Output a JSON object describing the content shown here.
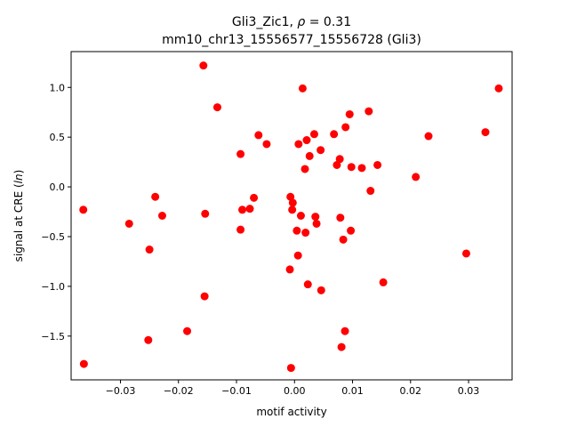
{
  "chart_data": {
    "type": "scatter",
    "title_line1_prefix": "Gli3_Zic1, ",
    "title_rho_symbol": "ρ",
    "title_rho_value": " = 0.31",
    "title_line2": "mm10_chr13_15556577_15556728 (Gli3)",
    "xlabel": "motif activity",
    "ylabel_prefix": "signal at CRE (",
    "ylabel_italic": "ln",
    "ylabel_suffix": ")",
    "xlim": [
      -0.0385,
      0.0375
    ],
    "ylim": [
      -1.94,
      1.36
    ],
    "xticks": [
      -0.03,
      -0.02,
      -0.01,
      0.0,
      0.01,
      0.02,
      0.03
    ],
    "xtick_labels": [
      "−0.03",
      "−0.02",
      "−0.01",
      "0.00",
      "0.01",
      "0.02",
      "0.03"
    ],
    "yticks": [
      -1.5,
      -1.0,
      -0.5,
      0.0,
      0.5,
      1.0
    ],
    "ytick_labels": [
      "−1.5",
      "−1.0",
      "−0.5",
      "0.0",
      "0.5",
      "1.0"
    ],
    "marker_color": "#ff0000",
    "points": [
      {
        "x": -0.0157,
        "y": 1.22
      },
      {
        "x": 0.0014,
        "y": 0.99
      },
      {
        "x": 0.0352,
        "y": 0.99
      },
      {
        "x": -0.0133,
        "y": 0.8
      },
      {
        "x": 0.0128,
        "y": 0.76
      },
      {
        "x": 0.0095,
        "y": 0.73
      },
      {
        "x": 0.0088,
        "y": 0.6
      },
      {
        "x": 0.0329,
        "y": 0.55
      },
      {
        "x": 0.0034,
        "y": 0.53
      },
      {
        "x": 0.0068,
        "y": 0.53
      },
      {
        "x": -0.0062,
        "y": 0.52
      },
      {
        "x": 0.0231,
        "y": 0.51
      },
      {
        "x": 0.0021,
        "y": 0.47
      },
      {
        "x": 0.0007,
        "y": 0.43
      },
      {
        "x": -0.0048,
        "y": 0.43
      },
      {
        "x": 0.0045,
        "y": 0.37
      },
      {
        "x": -0.0093,
        "y": 0.33
      },
      {
        "x": 0.0026,
        "y": 0.31
      },
      {
        "x": 0.0078,
        "y": 0.28
      },
      {
        "x": 0.0073,
        "y": 0.22
      },
      {
        "x": 0.0143,
        "y": 0.22
      },
      {
        "x": 0.0098,
        "y": 0.2
      },
      {
        "x": 0.0116,
        "y": 0.19
      },
      {
        "x": 0.0018,
        "y": 0.18
      },
      {
        "x": 0.0209,
        "y": 0.1
      },
      {
        "x": 0.0131,
        "y": -0.04
      },
      {
        "x": -0.024,
        "y": -0.1
      },
      {
        "x": -0.0007,
        "y": -0.1
      },
      {
        "x": -0.007,
        "y": -0.11
      },
      {
        "x": -0.0003,
        "y": -0.16
      },
      {
        "x": -0.0364,
        "y": -0.23
      },
      {
        "x": -0.009,
        "y": -0.23
      },
      {
        "x": -0.0077,
        "y": -0.22
      },
      {
        "x": -0.0004,
        "y": -0.23
      },
      {
        "x": -0.0154,
        "y": -0.27
      },
      {
        "x": -0.0228,
        "y": -0.29
      },
      {
        "x": 0.0011,
        "y": -0.29
      },
      {
        "x": 0.0036,
        "y": -0.3
      },
      {
        "x": 0.0079,
        "y": -0.31
      },
      {
        "x": -0.0285,
        "y": -0.37
      },
      {
        "x": 0.0038,
        "y": -0.37
      },
      {
        "x": -0.0093,
        "y": -0.43
      },
      {
        "x": 0.0004,
        "y": -0.44
      },
      {
        "x": 0.0097,
        "y": -0.44
      },
      {
        "x": 0.0019,
        "y": -0.46
      },
      {
        "x": 0.0084,
        "y": -0.53
      },
      {
        "x": -0.025,
        "y": -0.63
      },
      {
        "x": 0.0296,
        "y": -0.67
      },
      {
        "x": 0.0006,
        "y": -0.69
      },
      {
        "x": -0.0008,
        "y": -0.83
      },
      {
        "x": 0.0153,
        "y": -0.96
      },
      {
        "x": 0.0023,
        "y": -0.98
      },
      {
        "x": 0.0046,
        "y": -1.04
      },
      {
        "x": -0.0155,
        "y": -1.1
      },
      {
        "x": -0.0185,
        "y": -1.45
      },
      {
        "x": 0.0087,
        "y": -1.45
      },
      {
        "x": -0.0252,
        "y": -1.54
      },
      {
        "x": 0.0081,
        "y": -1.61
      },
      {
        "x": -0.0363,
        "y": -1.78
      },
      {
        "x": -0.0006,
        "y": -1.82
      }
    ]
  }
}
